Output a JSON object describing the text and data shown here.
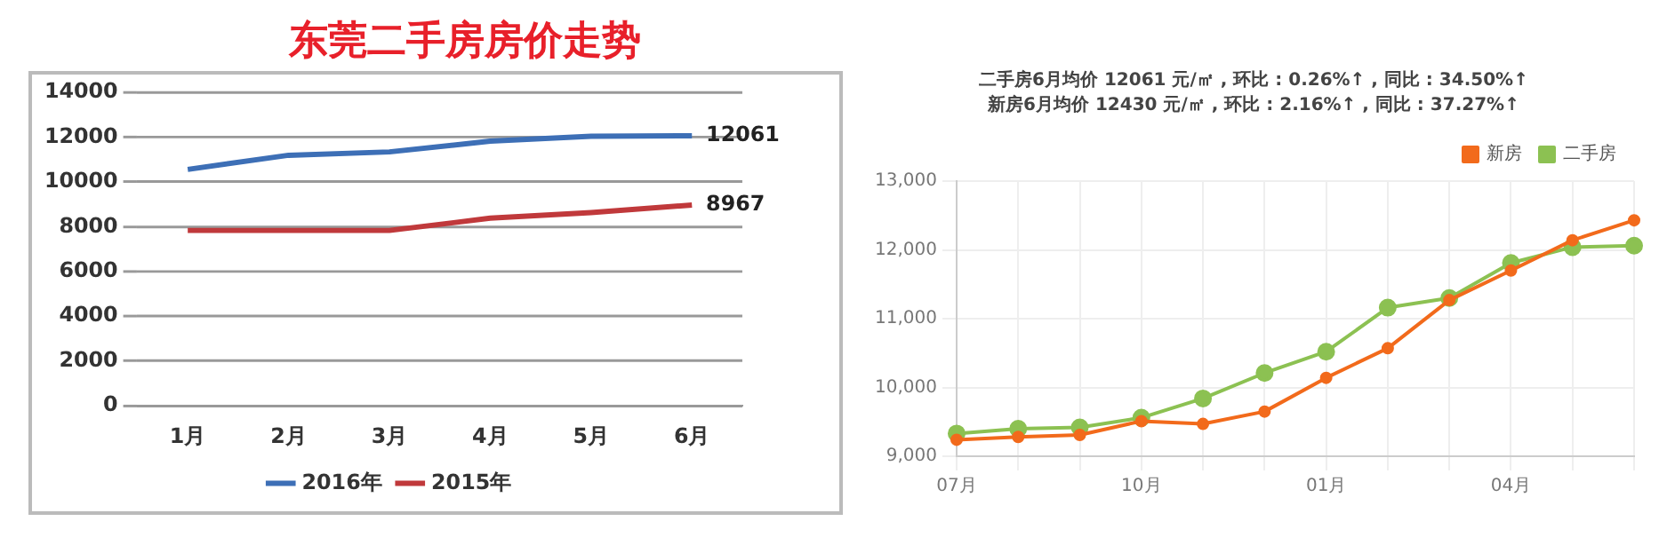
{
  "chart_data": [
    {
      "type": "line",
      "title": "东莞二手房房价走势",
      "categories": [
        "1月",
        "2月",
        "3月",
        "4月",
        "5月",
        "6月"
      ],
      "series": [
        {
          "name": "2016年",
          "color": "#3d6fb6",
          "values": [
            10560,
            11190,
            11340,
            11820,
            12040,
            12061
          ],
          "value_labels": [
            null,
            null,
            null,
            null,
            null,
            "12061"
          ]
        },
        {
          "name": "2015年",
          "color": "#c0393b",
          "values": [
            7830,
            7830,
            7830,
            8380,
            8630,
            8967
          ],
          "value_labels": [
            null,
            null,
            null,
            null,
            null,
            "8967"
          ]
        }
      ],
      "ylim": [
        0,
        14000
      ],
      "yticks": [
        0,
        2000,
        4000,
        6000,
        8000,
        10000,
        12000,
        14000
      ],
      "grid": "y",
      "legend": "bottom",
      "marker": "none"
    },
    {
      "type": "line",
      "title": "二手房6月均价 12061 元/㎡ , 环比 : 0.26%↑ , 同比 : 34.50%↑",
      "subtitle": "新房6月均价 12430 元/㎡ , 环比 : 2.16%↑ , 同比 : 37.27%↑",
      "categories": [
        "07月",
        null,
        null,
        "10月",
        null,
        null,
        "01月",
        null,
        null,
        "04月",
        null,
        null
      ],
      "series": [
        {
          "name": "新房",
          "color": "#f26a1b",
          "values": [
            9240,
            9280,
            9310,
            9510,
            9470,
            9650,
            10140,
            10570,
            11270,
            11700,
            12140,
            12430
          ]
        },
        {
          "name": "二手房",
          "color": "#8cc152",
          "values": [
            9330,
            9400,
            9420,
            9560,
            9840,
            10210,
            10520,
            11160,
            11300,
            11810,
            12040,
            12061
          ]
        }
      ],
      "ylim": [
        9000,
        13000
      ],
      "yticks": [
        {
          "value": 9000,
          "label": "9,000"
        },
        {
          "value": 10000,
          "label": "10,000"
        },
        {
          "value": 11000,
          "label": "11,000"
        },
        {
          "value": 12000,
          "label": "12,000"
        },
        {
          "value": 13000,
          "label": "13,000"
        }
      ],
      "grid": true,
      "legend": "top right",
      "marker": "circle"
    }
  ]
}
